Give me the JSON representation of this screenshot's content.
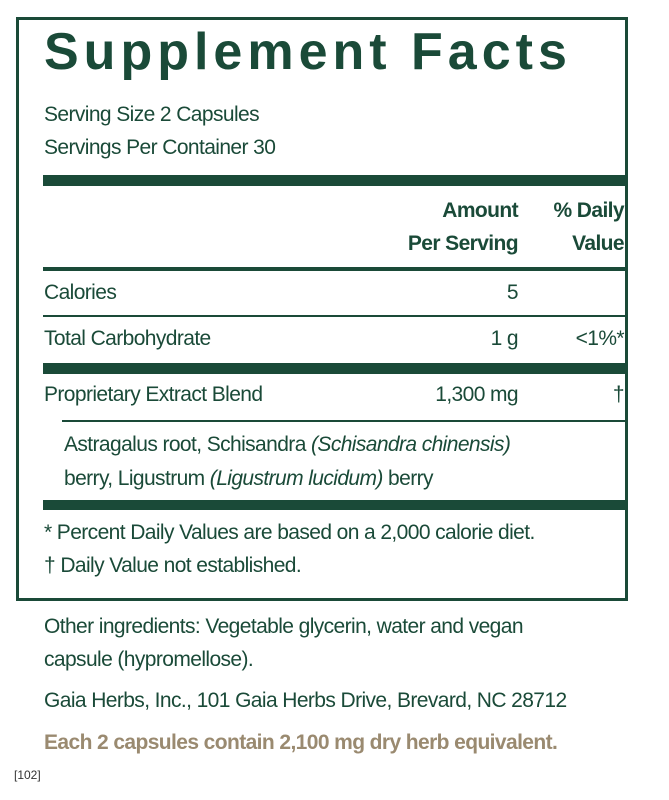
{
  "title": "Supplement Facts",
  "serving_size": "Serving Size 2 Capsules",
  "servings_per_container": "Servings Per Container 30",
  "header": {
    "amount_line1": "Amount",
    "amount_line2": "Per Serving",
    "dv_line1": "% Daily",
    "dv_line2": "Value"
  },
  "rows": [
    {
      "name": "Calories",
      "amount": "5",
      "dv": ""
    },
    {
      "name": "Total Carbohydrate",
      "amount": "1 g",
      "dv": "<1%*"
    },
    {
      "name": "Proprietary Extract Blend",
      "amount": "1,300 mg",
      "dv": "†"
    }
  ],
  "blend": {
    "p1": "Astragalus root, Schisandra ",
    "i1": "(Schisandra chinensis)",
    "p2": "berry, Ligustrum ",
    "i2": "(Ligustrum lucidum)",
    "p3": " berry"
  },
  "footnotes": [
    "*  Percent Daily Values are based on a 2,000 calorie diet.",
    "† Daily Value not established."
  ],
  "other_ingredients_line1": "Other ingredients: Vegetable glycerin, water and vegan",
  "other_ingredients_line2": "capsule (hypromellose).",
  "address": "Gaia Herbs, Inc., 101 Gaia Herbs Drive, Brevard, NC 28712",
  "equivalent": "Each 2 capsules contain 2,100 mg dry herb equivalent.",
  "code": "[102]",
  "colors": {
    "brand_green": "#1a4a38",
    "tan": "#9a8a70"
  }
}
